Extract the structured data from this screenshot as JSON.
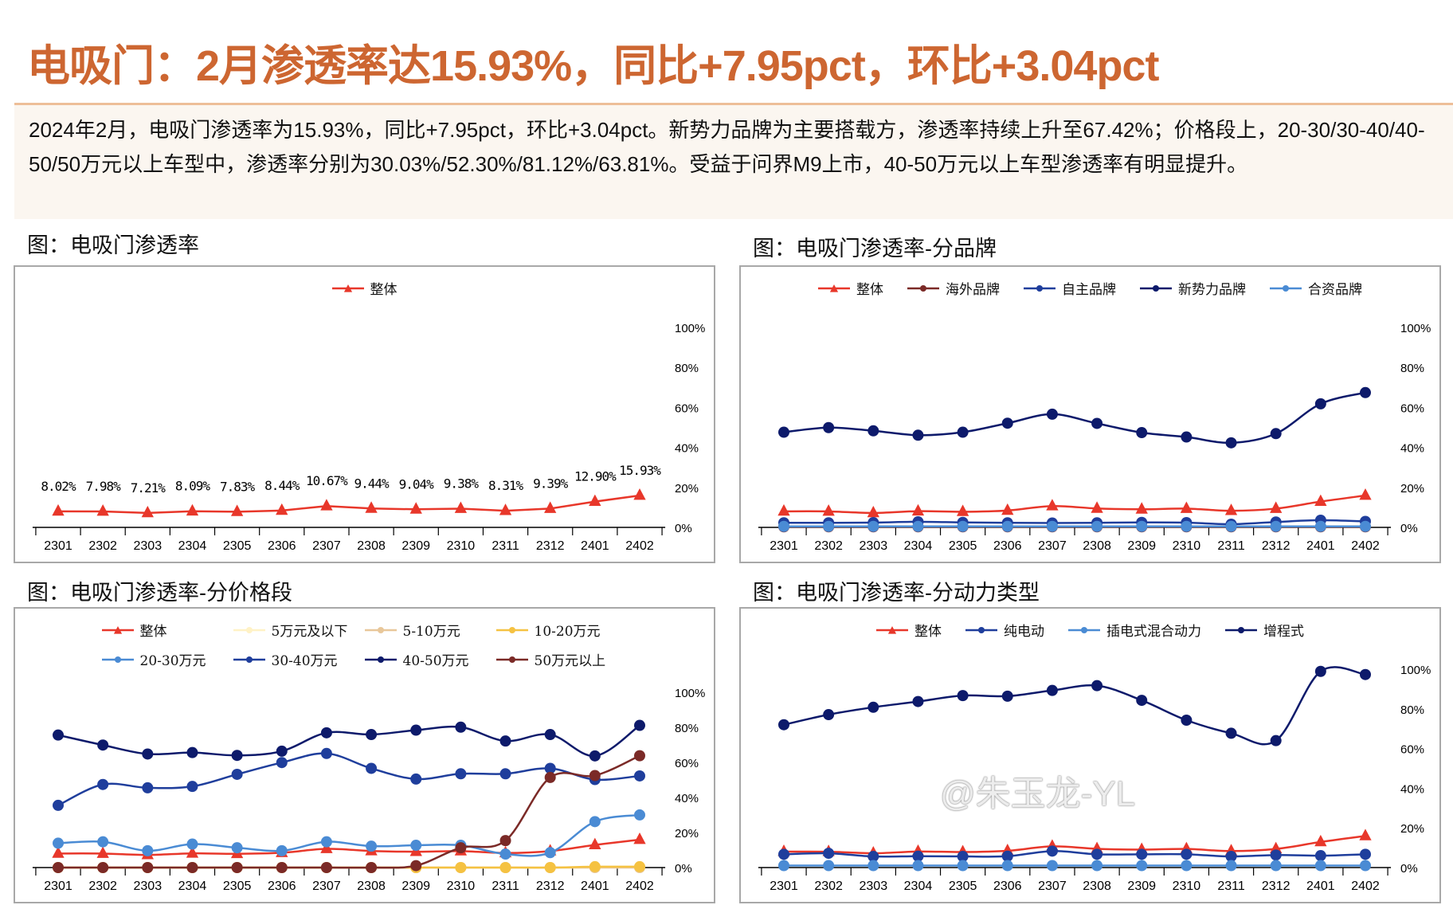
{
  "header": {
    "title": "电吸门：2月渗透率达15.93%，同比+7.95pct，环比+3.04pct"
  },
  "summary": {
    "text": "2024年2月，电吸门渗透率为15.93%，同比+7.95pct，环比+3.04pct。新势力品牌为主要搭载方，渗透率持续上升至67.42%；价格段上，20-30/30-40/40-50/50万元以上车型中，渗透率分别为30.03%/52.30%/81.12%/63.81%。受益于问界M9上市，40-50万元以上车型渗透率有明显提升。"
  },
  "watermark": "@朱玉龙-YL",
  "colors": {
    "title": "#CD6631",
    "overall": "#E8372A",
    "overseas": "#7B2A27",
    "domestic": "#1F3E9C",
    "newforce": "#0D1A6B",
    "jv": "#4A8BD4",
    "p5": "#FFF2C6",
    "p5_10": "#E8C79A",
    "p10_20": "#F5C242",
    "p20_30": "#4A8BD4",
    "p30_40": "#1F3E9C",
    "p40_50": "#0D1A6B",
    "p50": "#7B2A27"
  },
  "chart_data": [
    {
      "id": "overall",
      "title": "图：电吸门渗透率",
      "type": "line",
      "categories": [
        "2301",
        "2302",
        "2303",
        "2304",
        "2305",
        "2306",
        "2307",
        "2308",
        "2309",
        "2310",
        "2311",
        "2312",
        "2401",
        "2402"
      ],
      "yticks": [
        "0%",
        "20%",
        "40%",
        "60%",
        "80%",
        "100%"
      ],
      "ylim": [
        0,
        100
      ],
      "y_axis": "right",
      "legend": "top",
      "series": [
        {
          "name": "整体",
          "marker": "triangle",
          "color": "#E8372A",
          "smooth": false,
          "values": [
            8.02,
            7.98,
            7.21,
            8.09,
            7.83,
            8.44,
            10.67,
            9.44,
            9.04,
            9.38,
            8.31,
            9.39,
            12.9,
            15.93
          ],
          "labels": [
            "8.02%",
            "7.98%",
            "7.21%",
            "8.09%",
            "7.83%",
            "8.44%",
            "10.67%",
            "9.44%",
            "9.04%",
            "9.38%",
            "8.31%",
            "9.39%",
            "12.90%",
            "15.93%"
          ]
        }
      ]
    },
    {
      "id": "brand",
      "title": "图：电吸门渗透率-分品牌",
      "type": "line",
      "categories": [
        "2301",
        "2302",
        "2303",
        "2304",
        "2305",
        "2306",
        "2307",
        "2308",
        "2309",
        "2310",
        "2311",
        "2312",
        "2401",
        "2402"
      ],
      "yticks": [
        "0%",
        "20%",
        "40%",
        "60%",
        "80%",
        "100%"
      ],
      "ylim": [
        0,
        100
      ],
      "y_axis": "right",
      "legend": "top",
      "series": [
        {
          "name": "整体",
          "marker": "triangle",
          "color": "#E8372A",
          "values": [
            8.02,
            7.98,
            7.21,
            8.09,
            7.83,
            8.44,
            10.67,
            9.44,
            9.04,
            9.38,
            8.31,
            9.39,
            12.9,
            15.93
          ]
        },
        {
          "name": "海外品牌",
          "marker": "circle",
          "color": "#7B2A27",
          "values": [
            0.3,
            0.3,
            0.3,
            0.3,
            0.3,
            0.3,
            0.3,
            0.3,
            0.3,
            0.3,
            0.3,
            0.3,
            0.3,
            0.3
          ]
        },
        {
          "name": "自主品牌",
          "marker": "circle",
          "color": "#1F3E9C",
          "values": [
            2.3,
            2.3,
            2.4,
            2.8,
            2.5,
            2.3,
            2.2,
            2.3,
            2.5,
            2.4,
            1.6,
            2.7,
            3.6,
            3.0
          ]
        },
        {
          "name": "新势力品牌",
          "marker": "circle",
          "color": "#0D1A6B",
          "values": [
            47.6,
            49.9,
            48.3,
            46.1,
            47.6,
            52.1,
            56.6,
            52.0,
            47.4,
            45.2,
            42.3,
            46.9,
            61.8,
            67.42
          ]
        },
        {
          "name": "合资品牌",
          "marker": "circle",
          "color": "#4A8BD4",
          "values": [
            0.5,
            0.5,
            0.5,
            0.5,
            0.5,
            0.5,
            0.5,
            0.5,
            0.5,
            0.5,
            0.5,
            0.5,
            0.5,
            0.5
          ]
        }
      ]
    },
    {
      "id": "price",
      "title": "图：电吸门渗透率-分价格段",
      "type": "line",
      "categories": [
        "2301",
        "2302",
        "2303",
        "2304",
        "2305",
        "2306",
        "2307",
        "2308",
        "2309",
        "2310",
        "2311",
        "2312",
        "2401",
        "2402"
      ],
      "yticks": [
        "0%",
        "20%",
        "40%",
        "60%",
        "80%",
        "100%"
      ],
      "ylim": [
        0,
        100
      ],
      "y_axis": "right",
      "legend": "top",
      "series": [
        {
          "name": "整体",
          "marker": "triangle",
          "color": "#E8372A",
          "values": [
            8.02,
            7.98,
            7.21,
            8.09,
            7.83,
            8.44,
            10.67,
            9.44,
            9.04,
            9.38,
            8.31,
            9.39,
            12.9,
            15.93
          ]
        },
        {
          "name": "5万元及以下",
          "marker": "circle",
          "color": "#FFF2C6",
          "values": [
            0,
            0,
            0,
            0,
            0,
            0,
            0,
            0,
            0,
            0,
            0,
            0,
            0,
            0
          ]
        },
        {
          "name": "5-10万元",
          "marker": "circle",
          "color": "#E8C79A",
          "values": [
            0,
            0,
            0,
            0,
            0,
            0,
            0,
            0,
            0,
            0,
            0,
            0,
            0,
            0
          ]
        },
        {
          "name": "10-20万元",
          "marker": "circle",
          "color": "#F5C242",
          "values": [
            0,
            0,
            0,
            0,
            0,
            0,
            0,
            0,
            0,
            0,
            0,
            0,
            0.5,
            0.5
          ]
        },
        {
          "name": "20-30万元",
          "marker": "circle",
          "color": "#4A8BD4",
          "values": [
            13.9,
            14.7,
            9.6,
            13.4,
            11.3,
            9.6,
            14.7,
            12.2,
            12.7,
            12.7,
            7.7,
            8.5,
            26.2,
            30.03
          ]
        },
        {
          "name": "30-40万元",
          "marker": "circle",
          "color": "#1F3E9C",
          "values": [
            35.5,
            47.4,
            45.5,
            46.3,
            53.2,
            59.9,
            65.1,
            56.6,
            50.5,
            53.5,
            53.5,
            56.6,
            50.2,
            52.3
          ]
        },
        {
          "name": "40-50万元",
          "marker": "circle",
          "color": "#0D1A6B",
          "values": [
            75.6,
            69.9,
            64.8,
            65.6,
            64.0,
            66.4,
            76.9,
            75.9,
            78.4,
            80.1,
            72.2,
            75.9,
            63.7,
            81.12
          ]
        },
        {
          "name": "50万元以上",
          "marker": "circle",
          "color": "#7B2A27",
          "values": [
            0,
            0,
            0,
            0,
            0,
            0,
            0,
            0,
            1.1,
            11.3,
            15.4,
            51.4,
            52.5,
            63.81
          ]
        }
      ]
    },
    {
      "id": "powertrain",
      "title": "图：电吸门渗透率-分动力类型",
      "type": "line",
      "categories": [
        "2301",
        "2302",
        "2303",
        "2304",
        "2305",
        "2306",
        "2307",
        "2308",
        "2309",
        "2310",
        "2311",
        "2312",
        "2401",
        "2402"
      ],
      "yticks": [
        "0%",
        "20%",
        "40%",
        "60%",
        "80%",
        "100%"
      ],
      "ylim": [
        0,
        100
      ],
      "y_axis": "right",
      "legend": "top",
      "series": [
        {
          "name": "整体",
          "marker": "triangle",
          "color": "#E8372A",
          "values": [
            8.02,
            7.98,
            7.21,
            8.09,
            7.83,
            8.44,
            10.67,
            9.44,
            9.04,
            9.38,
            8.31,
            9.39,
            12.9,
            15.93
          ]
        },
        {
          "name": "纯电动",
          "marker": "circle",
          "color": "#1F3E9C",
          "values": [
            6.7,
            7.2,
            5.6,
            5.7,
            5.6,
            5.7,
            8.3,
            6.7,
            6.7,
            6.7,
            5.6,
            6.3,
            6.0,
            6.7
          ]
        },
        {
          "name": "插电式混合动力",
          "marker": "circle",
          "color": "#4A8BD4",
          "values": [
            1,
            1,
            1,
            1,
            1,
            1,
            1,
            1,
            1,
            1,
            1,
            1,
            1,
            1
          ]
        },
        {
          "name": "增程式",
          "marker": "circle",
          "color": "#0D1A6B",
          "values": [
            72.0,
            77.1,
            80.8,
            83.7,
            86.7,
            86.4,
            89.3,
            91.7,
            84.3,
            74.3,
            67.7,
            64.0,
            98.9,
            97.3
          ]
        }
      ]
    }
  ]
}
